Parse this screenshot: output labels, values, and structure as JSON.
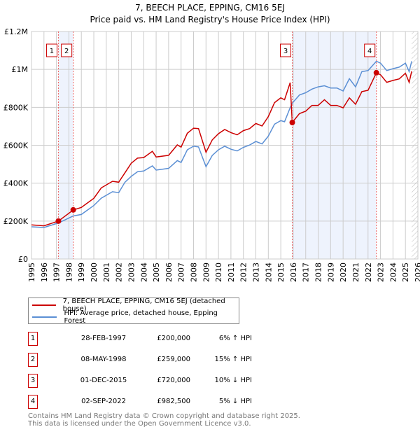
{
  "chart_data": {
    "type": "line",
    "title": "7, BEECH PLACE, EPPING, CM16 5EJ",
    "subtitle": "Price paid vs. HM Land Registry's House Price Index (HPI)",
    "xlim": [
      1995,
      2026
    ],
    "ylim": [
      0,
      1200000
    ],
    "x_ticks": [
      "1995",
      "1996",
      "1997",
      "1998",
      "1999",
      "2000",
      "2001",
      "2002",
      "2003",
      "2004",
      "2005",
      "2006",
      "2007",
      "2008",
      "2009",
      "2010",
      "2011",
      "2012",
      "2013",
      "2014",
      "2015",
      "2016",
      "2017",
      "2018",
      "2019",
      "2020",
      "2021",
      "2022",
      "2023",
      "2024",
      "2025",
      "2026"
    ],
    "y_ticks": [
      {
        "v": 0,
        "label": "£0"
      },
      {
        "v": 200000,
        "label": "£200K"
      },
      {
        "v": 400000,
        "label": "£400K"
      },
      {
        "v": 600000,
        "label": "£600K"
      },
      {
        "v": 800000,
        "label": "£800K"
      },
      {
        "v": 1000000,
        "label": "£1M"
      },
      {
        "v": 1200000,
        "label": "£1.2M"
      }
    ],
    "grid": true,
    "series": [
      {
        "name": "7, BEECH PLACE, EPPING, CM16 5EJ (detached house)",
        "color": "#cc0000",
        "x": [
          1995,
          1996,
          1997.16,
          1998.35,
          1999,
          2000,
          2000.6,
          2001.5,
          2002,
          2002.5,
          2003,
          2003.5,
          2004,
          2004.7,
          2005,
          2006,
          2006.7,
          2007,
          2007.5,
          2008,
          2008.4,
          2009,
          2009.5,
          2010,
          2010.5,
          2011,
          2011.5,
          2012,
          2012.5,
          2013,
          2013.5,
          2014,
          2014.5,
          2015,
          2015.3,
          2015.75,
          2015.92,
          2016.5,
          2017,
          2017.5,
          2018,
          2018.5,
          2019,
          2019.5,
          2020,
          2020.5,
          2021,
          2021.5,
          2022,
          2022.67,
          2023,
          2023.5,
          2024,
          2024.5,
          2025,
          2025.3,
          2025.5
        ],
        "y": [
          180000,
          175000,
          200000,
          259000,
          272000,
          320000,
          375000,
          410000,
          405000,
          455000,
          505000,
          532000,
          535000,
          568000,
          538000,
          547000,
          602000,
          590000,
          663000,
          690000,
          688000,
          563000,
          628000,
          661000,
          683000,
          667000,
          655000,
          677000,
          688000,
          715000,
          702000,
          751000,
          825000,
          850000,
          840000,
          930000,
          720000,
          767000,
          780000,
          810000,
          810000,
          840000,
          810000,
          810000,
          797000,
          850000,
          816000,
          883000,
          890000,
          982500,
          972000,
          932000,
          942000,
          950000,
          980000,
          932000,
          990000
        ]
      },
      {
        "name": "HPI: Average price, detached house, Epping Forest",
        "color": "#5b8fd4",
        "x": [
          1995,
          1996,
          1997.16,
          1998.35,
          1999,
          2000,
          2000.6,
          2001.5,
          2002,
          2002.5,
          2003,
          2003.5,
          2004,
          2004.7,
          2005,
          2006,
          2006.7,
          2007,
          2007.5,
          2008,
          2008.4,
          2009,
          2009.5,
          2010,
          2010.5,
          2011,
          2011.5,
          2012,
          2012.5,
          2013,
          2013.5,
          2014,
          2014.5,
          2015,
          2015.3,
          2015.75,
          2015.92,
          2016.5,
          2017,
          2017.5,
          2018,
          2018.5,
          2019,
          2019.5,
          2020,
          2020.5,
          2021,
          2021.5,
          2022,
          2022.67,
          2023,
          2023.5,
          2024,
          2024.5,
          2025,
          2025.3,
          2025.5
        ],
        "y": [
          170000,
          166000,
          190000,
          227000,
          235000,
          282000,
          321000,
          355000,
          350000,
          405000,
          436000,
          460000,
          464000,
          491000,
          469000,
          478000,
          519000,
          509000,
          576000,
          595000,
          591000,
          487000,
          546000,
          576000,
          595000,
          579000,
          570000,
          589000,
          601000,
          620000,
          607000,
          648000,
          711000,
          730000,
          724000,
          798000,
          822000,
          865000,
          877000,
          896000,
          908000,
          914000,
          902000,
          902000,
          886000,
          951000,
          908000,
          988000,
          994000,
          1043000,
          1033000,
          994000,
          1004000,
          1012000,
          1033000,
          988000,
          1043000
        ]
      }
    ],
    "sales": [
      {
        "n": "1",
        "x": 1997.16,
        "date": "28-FEB-1997",
        "price_value": 200000,
        "price": "£200,000",
        "hpi": "6% ↑ HPI"
      },
      {
        "n": "2",
        "x": 1998.35,
        "date": "08-MAY-1998",
        "price_value": 259000,
        "price": "£259,000",
        "hpi": "15% ↑ HPI"
      },
      {
        "n": "3",
        "x": 2015.92,
        "date": "01-DEC-2015",
        "price_value": 720000,
        "price": "£720,000",
        "hpi": "10% ↓ HPI"
      },
      {
        "n": "4",
        "x": 2022.67,
        "date": "02-SEP-2022",
        "price_value": 982500,
        "price": "£982,500",
        "hpi": "5% ↓ HPI"
      }
    ],
    "shaded_ranges": [
      [
        1997.16,
        1998.35
      ],
      [
        2015.92,
        2022.67
      ]
    ],
    "hatched_from": 2025.5,
    "legend_position": "below"
  },
  "footer": {
    "line1": "Contains HM Land Registry data © Crown copyright and database right 2025.",
    "line2": "This data is licensed under the Open Government Licence v3.0."
  }
}
